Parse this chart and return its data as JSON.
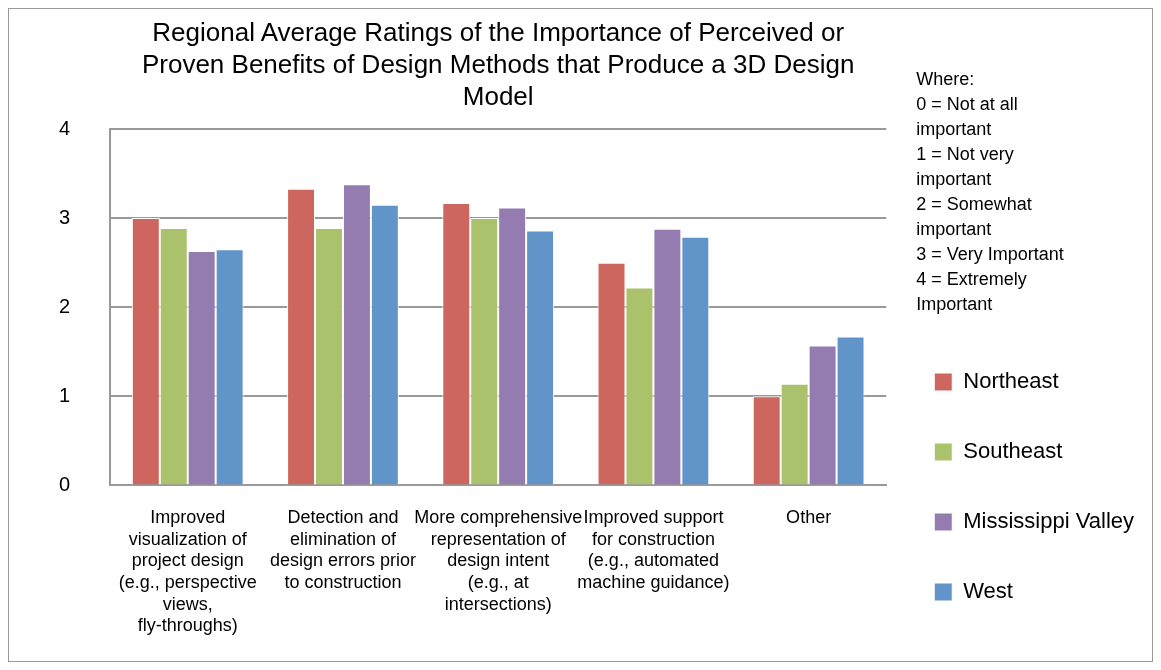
{
  "chart_data": {
    "type": "bar",
    "title": "Regional Average Ratings of the Importance of Perceived or Proven Benefits of Design Methods that Produce a 3D Design Model",
    "categories": [
      "Improved visualization of project design (e.g., perspective views, fly-throughs)",
      "Detection and elimination of design errors prior to construction",
      "More comprehensive representation of design intent (e.g., at intersections)",
      "Improved support for construction (e.g., automated machine guidance)",
      "Other"
    ],
    "series": [
      {
        "name": "Northeast",
        "color": "#cd665f",
        "values": [
          3.0,
          3.33,
          3.17,
          2.5,
          1.0
        ]
      },
      {
        "name": "Southeast",
        "color": "#aac26b",
        "values": [
          2.89,
          2.89,
          3.0,
          2.22,
          1.14
        ]
      },
      {
        "name": "Mississippi Valley",
        "color": "#947bb0",
        "values": [
          2.63,
          3.38,
          3.12,
          2.88,
          1.57
        ]
      },
      {
        "name": "West",
        "color": "#6195c9",
        "values": [
          2.65,
          3.15,
          2.86,
          2.79,
          1.67
        ]
      }
    ],
    "ylim": [
      0,
      4
    ],
    "yticks": [
      0,
      1,
      2,
      3,
      4
    ],
    "grid": "y",
    "legend": "right",
    "annotations": [
      "Where:",
      "0 = Not at all important",
      "1 = Not very important",
      "2 = Somewhat important",
      "3 = Very Important",
      "4 = Extremely Important"
    ]
  }
}
